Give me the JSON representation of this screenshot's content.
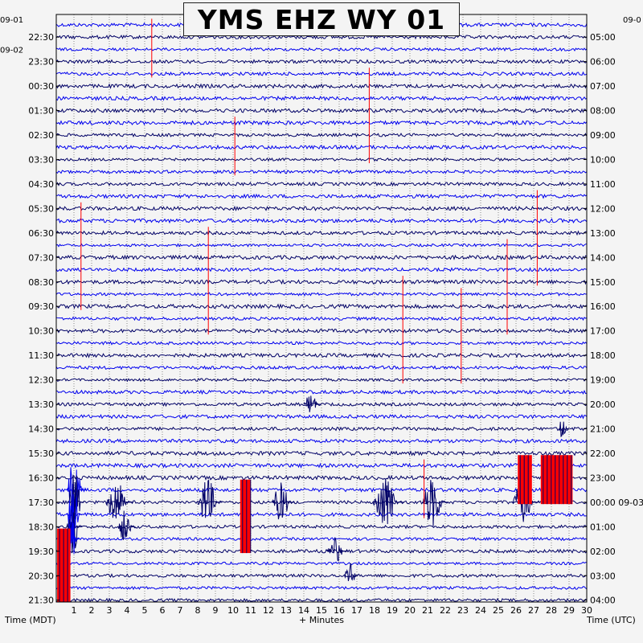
{
  "title": "YMS EHZ WY 01",
  "chart_data": {
    "type": "helicorder",
    "title": "YMS EHZ WY 01",
    "xlabel": "+ Minutes",
    "left_axis_label": "Time (MDT)",
    "right_axis_label": "Time (UTC)",
    "x_ticks": [
      "1",
      "2",
      "3",
      "4",
      "5",
      "6",
      "7",
      "8",
      "9",
      "10",
      "11",
      "12",
      "13",
      "14",
      "15",
      "16",
      "17",
      "18",
      "19",
      "20",
      "21",
      "22",
      "23",
      "24",
      "25",
      "26",
      "27",
      "28",
      "29",
      "30"
    ],
    "xlim": [
      0,
      30
    ],
    "grid": true,
    "trace_colors": [
      "#0000ee",
      "#000066"
    ],
    "clip_color": "#ff0000",
    "left_ticks": [
      "22:30",
      "23:30",
      "00:30",
      "01:30",
      "02:30",
      "03:30",
      "04:30",
      "05:30",
      "06:30",
      "07:30",
      "08:30",
      "09:30",
      "10:30",
      "11:30",
      "12:30",
      "13:30",
      "14:30",
      "15:30",
      "16:30",
      "17:30",
      "18:30",
      "19:30",
      "20:30",
      "21:30"
    ],
    "right_ticks": [
      "05:00",
      "06:00",
      "07:00",
      "08:00",
      "09:00",
      "10:00",
      "11:00",
      "12:00",
      "13:00",
      "14:00",
      "15:00",
      "16:00",
      "17:00",
      "18:00",
      "19:00",
      "20:00",
      "21:00",
      "22:00",
      "23:00",
      "00:00 09-03",
      "01:00",
      "02:00",
      "03:00",
      "04:00"
    ],
    "left_date_labels": [
      {
        "text": "09-01",
        "after_tick": -1
      },
      {
        "text": "09-02",
        "after_tick": 0
      }
    ],
    "right_date_labels": [
      {
        "text": "09-0",
        "after_tick": -1
      }
    ],
    "row_count": 48,
    "minutes_per_row": 30,
    "spikes": [
      {
        "x": 5.4,
        "row_from": 0,
        "row_to": 4
      },
      {
        "x": 10.1,
        "row_from": 8,
        "row_to": 12
      },
      {
        "x": 17.7,
        "row_from": 4,
        "row_to": 11
      },
      {
        "x": 1.4,
        "row_from": 15,
        "row_to": 23
      },
      {
        "x": 8.6,
        "row_from": 17,
        "row_to": 25
      },
      {
        "x": 27.2,
        "row_from": 14,
        "row_to": 21
      },
      {
        "x": 25.5,
        "row_from": 18,
        "row_to": 25
      },
      {
        "x": 19.6,
        "row_from": 21,
        "row_to": 29
      },
      {
        "x": 22.9,
        "row_from": 22,
        "row_to": 29
      },
      {
        "x": 20.8,
        "row_from": 36,
        "row_to": 40
      }
    ],
    "bursts": [
      {
        "x": 0.6,
        "w": 1.1,
        "row": 38,
        "amp": 3.0
      },
      {
        "x": 0.7,
        "w": 0.9,
        "row": 39,
        "amp": 3.5
      },
      {
        "x": 0.6,
        "w": 0.9,
        "row": 40,
        "amp": 3.0
      },
      {
        "x": 0.6,
        "w": 0.9,
        "row": 41,
        "amp": 2.5
      },
      {
        "x": 0.6,
        "w": 0.7,
        "row": 42,
        "amp": 2.0
      },
      {
        "x": 2.8,
        "w": 1.6,
        "row": 39,
        "amp": 2.0
      },
      {
        "x": 3.5,
        "w": 1.0,
        "row": 41,
        "amp": 1.5
      },
      {
        "x": 8.0,
        "w": 1.4,
        "row": 39,
        "amp": 2.2
      },
      {
        "x": 12.2,
        "w": 1.3,
        "row": 39,
        "amp": 1.8
      },
      {
        "x": 17.9,
        "w": 1.8,
        "row": 39,
        "amp": 2.5
      },
      {
        "x": 20.7,
        "w": 1.5,
        "row": 39,
        "amp": 2.3
      },
      {
        "x": 25.8,
        "w": 1.5,
        "row": 39,
        "amp": 2.0
      },
      {
        "x": 14.0,
        "w": 1.0,
        "row": 31,
        "amp": 1.0
      },
      {
        "x": 15.3,
        "w": 1.2,
        "row": 43,
        "amp": 1.2
      },
      {
        "x": 16.3,
        "w": 0.8,
        "row": 45,
        "amp": 1.2
      },
      {
        "x": 28.4,
        "w": 0.6,
        "row": 33,
        "amp": 1.0
      }
    ],
    "clip_blocks": [
      {
        "x0": 0.05,
        "x1": 0.8,
        "row_from": 42,
        "row_to": 48
      },
      {
        "x0": 10.4,
        "x1": 11.0,
        "row_from": 38,
        "row_to": 44
      },
      {
        "x0": 26.1,
        "x1": 26.9,
        "row_from": 36,
        "row_to": 40
      },
      {
        "x0": 27.4,
        "x1": 29.2,
        "row_from": 36,
        "row_to": 40
      }
    ]
  }
}
